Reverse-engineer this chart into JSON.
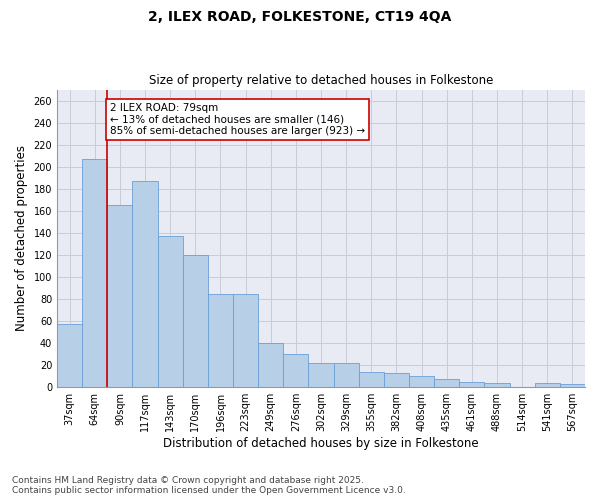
{
  "title1": "2, ILEX ROAD, FOLKESTONE, CT19 4QA",
  "title2": "Size of property relative to detached houses in Folkestone",
  "xlabel": "Distribution of detached houses by size in Folkestone",
  "ylabel": "Number of detached properties",
  "categories": [
    "37sqm",
    "64sqm",
    "90sqm",
    "117sqm",
    "143sqm",
    "170sqm",
    "196sqm",
    "223sqm",
    "249sqm",
    "276sqm",
    "302sqm",
    "329sqm",
    "355sqm",
    "382sqm",
    "408sqm",
    "435sqm",
    "461sqm",
    "488sqm",
    "514sqm",
    "541sqm",
    "567sqm"
  ],
  "values": [
    57,
    207,
    165,
    187,
    137,
    120,
    85,
    85,
    40,
    30,
    22,
    22,
    14,
    13,
    10,
    7,
    5,
    4,
    0,
    4,
    3
  ],
  "bar_color": "#b8cfe8",
  "bar_edge_color": "#6a9fd8",
  "vline_x": 1.5,
  "vline_color": "#cc0000",
  "annotation_text": "2 ILEX ROAD: 79sqm\n← 13% of detached houses are smaller (146)\n85% of semi-detached houses are larger (923) →",
  "annotation_box_color": "#ffffff",
  "annotation_box_edge": "#cc0000",
  "ylim": [
    0,
    270
  ],
  "yticks": [
    0,
    20,
    40,
    60,
    80,
    100,
    120,
    140,
    160,
    180,
    200,
    220,
    240,
    260
  ],
  "grid_color": "#c8ccd8",
  "bg_color": "#e8eaf4",
  "footer1": "Contains HM Land Registry data © Crown copyright and database right 2025.",
  "footer2": "Contains public sector information licensed under the Open Government Licence v3.0.",
  "title_fontsize": 10,
  "subtitle_fontsize": 8.5,
  "tick_fontsize": 7,
  "footer_fontsize": 6.5,
  "ann_fontsize": 7.5
}
